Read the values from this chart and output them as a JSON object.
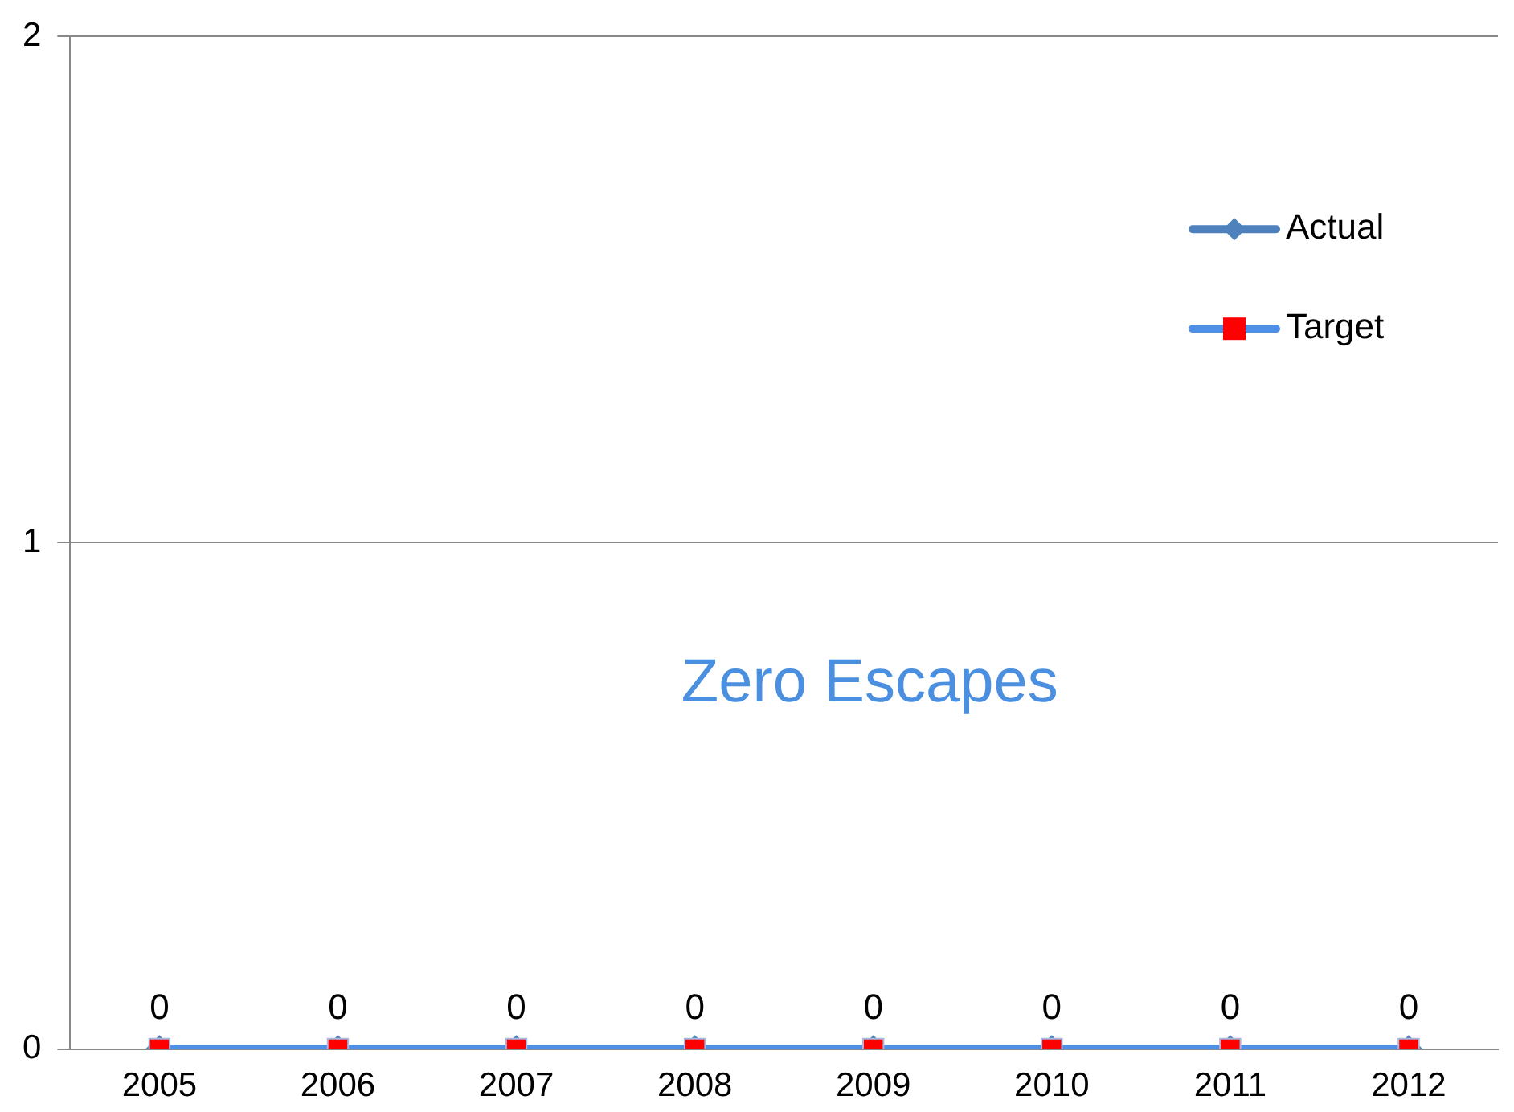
{
  "chart_data": {
    "type": "line",
    "categories": [
      "2005",
      "2006",
      "2007",
      "2008",
      "2009",
      "2010",
      "2011",
      "2012"
    ],
    "series": [
      {
        "name": "Actual",
        "color": "#4f81bd",
        "marker": "diamond",
        "values": [
          0,
          0,
          0,
          0,
          0,
          0,
          0,
          0
        ]
      },
      {
        "name": "Target",
        "color": "#4f8fe6",
        "marker": "square",
        "colors": [
          "#ff0000",
          "#ff0000",
          "#ff0000",
          "#ff0000",
          "#ff0000",
          "#ff0000",
          "#ff0000",
          "#ff0000"
        ],
        "values": [
          0,
          0,
          0,
          0,
          0,
          0,
          0,
          0
        ],
        "value_labels": [
          "0",
          "0",
          "0",
          "0",
          "0",
          "0",
          "0",
          "0"
        ]
      }
    ],
    "ylim": [
      0,
      2
    ],
    "yticks": [
      0,
      1,
      2
    ],
    "grid": "y",
    "legend": "top right",
    "annotations": [
      "Zero Escapes"
    ]
  }
}
